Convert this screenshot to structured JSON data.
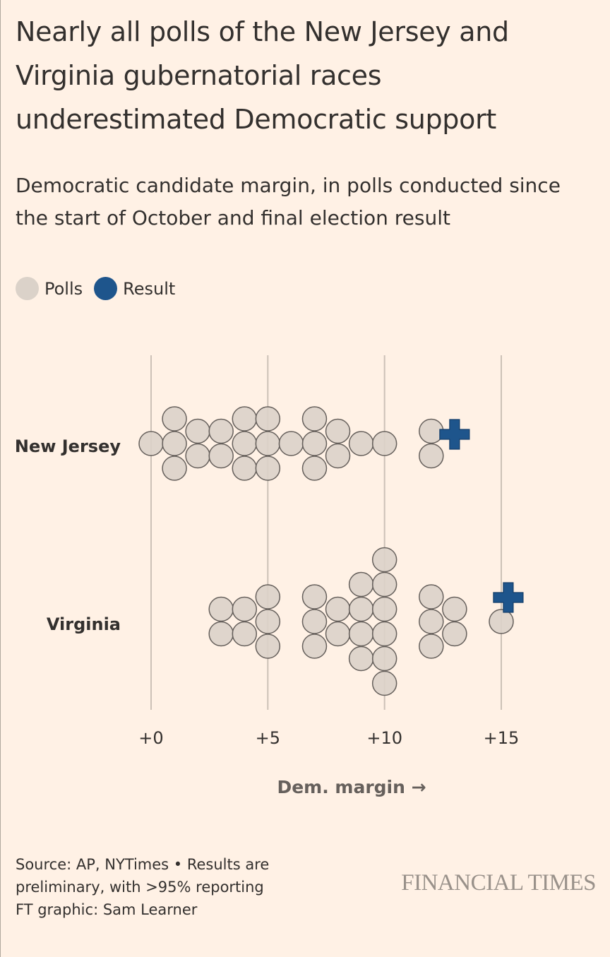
{
  "header": {
    "title": "Nearly all polls of the New Jersey and Virginia gubernatorial races underestimated Democratic support",
    "subtitle": "Democratic candidate margin, in polls conducted since the start of October and final election result"
  },
  "legend": [
    {
      "label": "Polls",
      "color": "#dbd2c9"
    },
    {
      "label": "Result",
      "color": "#1e558c"
    }
  ],
  "colors": {
    "background": "#fff1e5",
    "poll_fill": "#dbd2c9",
    "poll_stroke": "#66605c",
    "result": "#1e558c",
    "gridline": "#ccc1b7"
  },
  "chart_data": {
    "type": "scatter",
    "subtype": "beeswarm",
    "title": "Nearly all polls of the New Jersey and Virginia gubernatorial races underestimated Democratic support",
    "subtitle": "Democratic candidate margin, in polls conducted since the start of October and final election result",
    "xlabel": "Dem. margin →",
    "ylabel": "",
    "xlim": [
      0,
      15
    ],
    "xticks": [
      0,
      5,
      10,
      15
    ],
    "xtick_labels": [
      "+0",
      "+5",
      "+10",
      "+15"
    ],
    "grid": true,
    "legend_position": "top-left",
    "categories": [
      "New Jersey",
      "Virginia"
    ],
    "series": [
      {
        "name": "New Jersey",
        "polls": [
          0,
          1,
          1,
          1,
          2,
          2,
          3,
          3,
          4,
          4,
          4,
          5,
          5,
          5,
          6,
          7,
          7,
          7,
          8,
          8,
          9,
          10,
          12,
          12
        ],
        "result": 13
      },
      {
        "name": "Virginia",
        "polls": [
          3,
          3,
          4,
          4,
          5,
          5,
          5,
          7,
          7,
          7,
          8,
          8,
          9,
          9,
          9,
          9,
          10,
          10,
          10,
          10,
          10,
          10,
          12,
          12,
          12,
          13,
          13,
          15
        ],
        "result": 15.3
      }
    ]
  },
  "footer": {
    "source": [
      "Source: AP, NYTimes • Results are",
      "preliminary, with >95% reporting",
      "FT graphic: Sam Learner"
    ],
    "brand": "FINANCIAL TIMES"
  }
}
